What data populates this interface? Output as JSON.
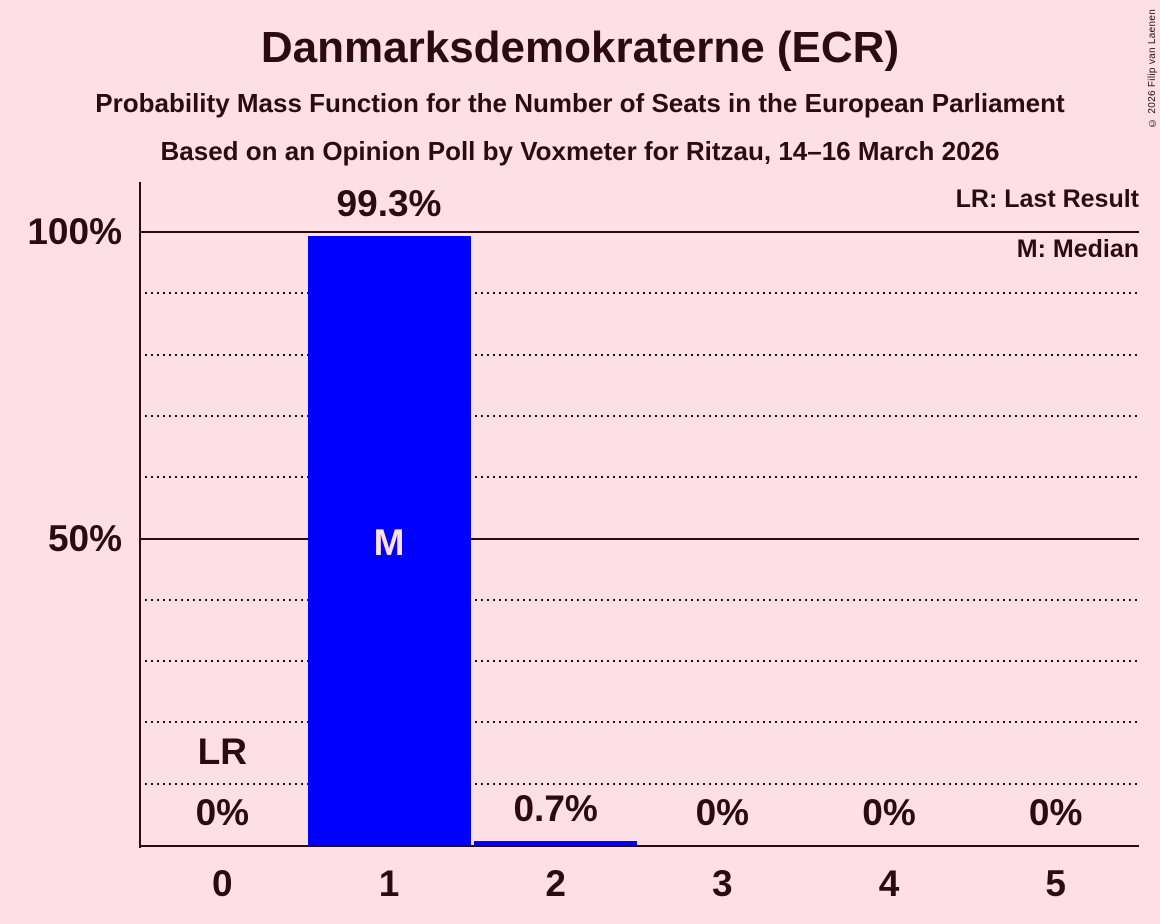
{
  "title": "Danmarksdemokraterne (ECR)",
  "subtitle": "Probability Mass Function for the Number of Seats in the European Parliament",
  "source_line": "Based on an Opinion Poll by Voxmeter for Ritzau, 14–16 March 2026",
  "copyright": "© 2026 Filip van Laenen",
  "legend": {
    "lr": "LR: Last Result",
    "m": "M: Median"
  },
  "colors": {
    "background": "#fce0e6",
    "bar": "#0000ff",
    "text": "#2b0a14",
    "median_label": "#fce0e6"
  },
  "chart_data": {
    "type": "bar",
    "title": "Danmarksdemokraterne (ECR)",
    "xlabel": "Number of Seats in the European Parliament",
    "ylabel": "Probability Mass",
    "categories": [
      "0",
      "1",
      "2",
      "3",
      "4",
      "5"
    ],
    "values": [
      0,
      99.3,
      0.7,
      0,
      0,
      0
    ],
    "value_labels": [
      "0%",
      "99.3%",
      "0.7%",
      "0%",
      "0%",
      "0%"
    ],
    "ylim": [
      0,
      108
    ],
    "grid": "dotted horizontal every 10%, solid at 50% and 100%",
    "legend_position": "top-right",
    "y_axis": {
      "minor_tick_step": 10,
      "major_ticks": [
        {
          "value": 50,
          "label": "50%"
        },
        {
          "value": 100,
          "label": "100%"
        }
      ]
    },
    "annotations": {
      "median_category": "1",
      "median_label": "M",
      "last_result_category": "0",
      "last_result_label": "LR"
    }
  }
}
